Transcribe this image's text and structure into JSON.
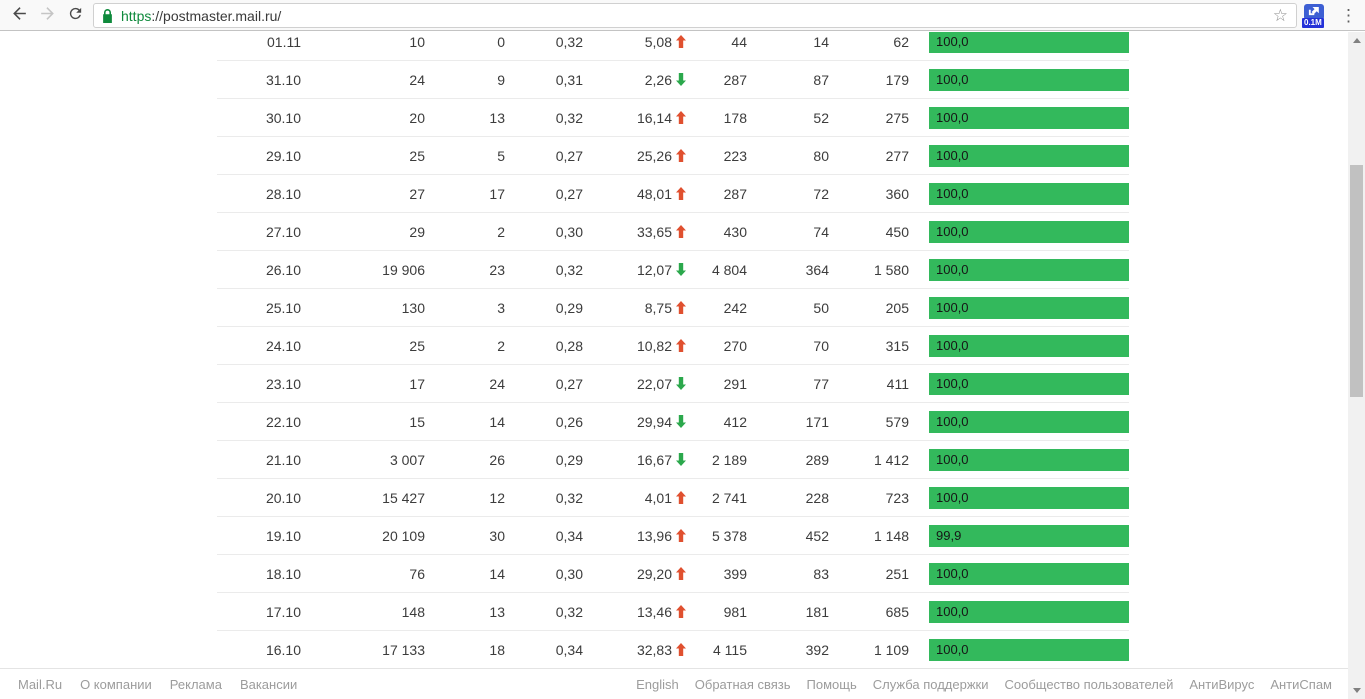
{
  "browser": {
    "url_full": "https://postmaster.mail.ru/",
    "url_scheme": "https",
    "url_rest": "://postmaster.mail.ru/",
    "extension_badge": "0.1M"
  },
  "icons": {
    "star": "☆",
    "menu": "⋮"
  },
  "colors": {
    "bar_green": "#33b95c",
    "arrow_up": "#e0502f",
    "arrow_down": "#2ba84c"
  },
  "table": {
    "rows": [
      {
        "date": "01.11",
        "col1": "10",
        "col2": "0",
        "col3": "0,32",
        "col4": "5,08",
        "trend": "up",
        "col5": "44",
        "col6": "14",
        "col7": "62",
        "bar_label": "100,0",
        "bar_pct": 100
      },
      {
        "date": "31.10",
        "col1": "24",
        "col2": "9",
        "col3": "0,31",
        "col4": "2,26",
        "trend": "down",
        "col5": "287",
        "col6": "87",
        "col7": "179",
        "bar_label": "100,0",
        "bar_pct": 100
      },
      {
        "date": "30.10",
        "col1": "20",
        "col2": "13",
        "col3": "0,32",
        "col4": "16,14",
        "trend": "up",
        "col5": "178",
        "col6": "52",
        "col7": "275",
        "bar_label": "100,0",
        "bar_pct": 100
      },
      {
        "date": "29.10",
        "col1": "25",
        "col2": "5",
        "col3": "0,27",
        "col4": "25,26",
        "trend": "up",
        "col5": "223",
        "col6": "80",
        "col7": "277",
        "bar_label": "100,0",
        "bar_pct": 100
      },
      {
        "date": "28.10",
        "col1": "27",
        "col2": "17",
        "col3": "0,27",
        "col4": "48,01",
        "trend": "up",
        "col5": "287",
        "col6": "72",
        "col7": "360",
        "bar_label": "100,0",
        "bar_pct": 100
      },
      {
        "date": "27.10",
        "col1": "29",
        "col2": "2",
        "col3": "0,30",
        "col4": "33,65",
        "trend": "up",
        "col5": "430",
        "col6": "74",
        "col7": "450",
        "bar_label": "100,0",
        "bar_pct": 100
      },
      {
        "date": "26.10",
        "col1": "19 906",
        "col2": "23",
        "col3": "0,32",
        "col4": "12,07",
        "trend": "down",
        "col5": "4 804",
        "col6": "364",
        "col7": "1 580",
        "bar_label": "100,0",
        "bar_pct": 100
      },
      {
        "date": "25.10",
        "col1": "130",
        "col2": "3",
        "col3": "0,29",
        "col4": "8,75",
        "trend": "up",
        "col5": "242",
        "col6": "50",
        "col7": "205",
        "bar_label": "100,0",
        "bar_pct": 100
      },
      {
        "date": "24.10",
        "col1": "25",
        "col2": "2",
        "col3": "0,28",
        "col4": "10,82",
        "trend": "up",
        "col5": "270",
        "col6": "70",
        "col7": "315",
        "bar_label": "100,0",
        "bar_pct": 100
      },
      {
        "date": "23.10",
        "col1": "17",
        "col2": "24",
        "col3": "0,27",
        "col4": "22,07",
        "trend": "down",
        "col5": "291",
        "col6": "77",
        "col7": "411",
        "bar_label": "100,0",
        "bar_pct": 100
      },
      {
        "date": "22.10",
        "col1": "15",
        "col2": "14",
        "col3": "0,26",
        "col4": "29,94",
        "trend": "down",
        "col5": "412",
        "col6": "171",
        "col7": "579",
        "bar_label": "100,0",
        "bar_pct": 100
      },
      {
        "date": "21.10",
        "col1": "3 007",
        "col2": "26",
        "col3": "0,29",
        "col4": "16,67",
        "trend": "down",
        "col5": "2 189",
        "col6": "289",
        "col7": "1 412",
        "bar_label": "100,0",
        "bar_pct": 100
      },
      {
        "date": "20.10",
        "col1": "15 427",
        "col2": "12",
        "col3": "0,32",
        "col4": "4,01",
        "trend": "up",
        "col5": "2 741",
        "col6": "228",
        "col7": "723",
        "bar_label": "100,0",
        "bar_pct": 100
      },
      {
        "date": "19.10",
        "col1": "20 109",
        "col2": "30",
        "col3": "0,34",
        "col4": "13,96",
        "trend": "up",
        "col5": "5 378",
        "col6": "452",
        "col7": "1 148",
        "bar_label": "99,9",
        "bar_pct": 99.9
      },
      {
        "date": "18.10",
        "col1": "76",
        "col2": "14",
        "col3": "0,30",
        "col4": "29,20",
        "trend": "up",
        "col5": "399",
        "col6": "83",
        "col7": "251",
        "bar_label": "100,0",
        "bar_pct": 100
      },
      {
        "date": "17.10",
        "col1": "148",
        "col2": "13",
        "col3": "0,32",
        "col4": "13,46",
        "trend": "up",
        "col5": "981",
        "col6": "181",
        "col7": "685",
        "bar_label": "100,0",
        "bar_pct": 100
      },
      {
        "date": "16.10",
        "col1": "17 133",
        "col2": "18",
        "col3": "0,34",
        "col4": "32,83",
        "trend": "up",
        "col5": "4 115",
        "col6": "392",
        "col7": "1 109",
        "bar_label": "100,0",
        "bar_pct": 100
      }
    ]
  },
  "footer": {
    "left_links": [
      "Mail.Ru",
      "О компании",
      "Реклама",
      "Вакансии"
    ],
    "right_links": [
      "English",
      "Обратная связь",
      "Помощь",
      "Служба поддержки",
      "Сообщество пользователей",
      "АнтиВирус",
      "АнтиСпам"
    ]
  }
}
